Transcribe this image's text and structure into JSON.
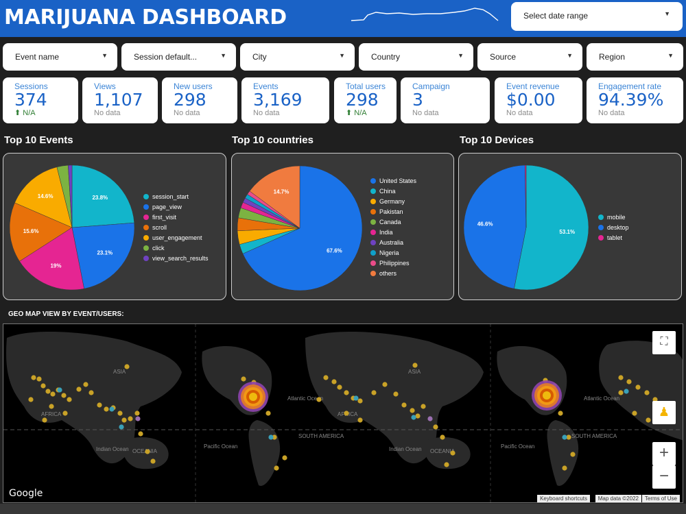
{
  "header": {
    "title": "MARIJUANA DASHBOARD",
    "date_range": "Select date range"
  },
  "filters": [
    "Event name",
    "Session default...",
    "City",
    "Country",
    "Source",
    "Region"
  ],
  "kpis": [
    {
      "label": "Sessions",
      "value": "374",
      "sub": "⬆ N/A",
      "up": true
    },
    {
      "label": "Views",
      "value": "1,107",
      "sub": "No data",
      "up": false
    },
    {
      "label": "New users",
      "value": "298",
      "sub": "No data",
      "up": false
    },
    {
      "label": "Events",
      "value": "3,169",
      "sub": "No data",
      "up": false
    },
    {
      "label": "Total users",
      "value": "298",
      "sub": "⬆ N/A",
      "up": true
    },
    {
      "label": "Campaign",
      "value": "3",
      "sub": "No data",
      "up": false
    },
    {
      "label": "Event revenue",
      "value": "$0.00",
      "sub": "No data",
      "up": false
    },
    {
      "label": "Engagement rate",
      "value": "94.39%",
      "sub": "No data",
      "up": false
    }
  ],
  "sections": {
    "events": "Top 10 Events",
    "countries": "Top 10 countries",
    "devices": "Top 10 Devices",
    "geo": "GEO MAP VIEW BY EVENT/USERS:"
  },
  "chart_data": [
    {
      "type": "pie",
      "title": "Top 10 Events",
      "categories": [
        "session_start",
        "page_view",
        "first_visit",
        "scroll",
        "user_engagement",
        "click",
        "view_search_results"
      ],
      "values": [
        23.8,
        23.1,
        19,
        15.6,
        14.6,
        2.9,
        1.0
      ],
      "data_labels": [
        "23.8%",
        "23.1%",
        "19%",
        "15.6%",
        "14.6%",
        "",
        ""
      ],
      "colors": [
        "#12b5cb",
        "#1a73e8",
        "#e52592",
        "#e8710a",
        "#f9ab00",
        "#7cb342",
        "#6f42c1"
      ],
      "legend": "right"
    },
    {
      "type": "pie",
      "title": "Top 10 countries",
      "categories": [
        "United States",
        "China",
        "Germany",
        "Pakistan",
        "Canada",
        "India",
        "Australia",
        "Nigeria",
        "Philippines",
        "others"
      ],
      "values": [
        67.6,
        2.5,
        3.5,
        3.3,
        2.6,
        1.5,
        1.2,
        1.1,
        1.0,
        14.7
      ],
      "data_labels": [
        "67.6%",
        "",
        "",
        "",
        "",
        "",
        "",
        "",
        "",
        "14.7%"
      ],
      "colors": [
        "#1a73e8",
        "#12b5cb",
        "#f9ab00",
        "#e8710a",
        "#7cb342",
        "#e52592",
        "#6f42c1",
        "#0fa0c9",
        "#ea4c89",
        "#f07b3f"
      ],
      "legend": "right"
    },
    {
      "type": "pie",
      "title": "Top 10 Devices",
      "categories": [
        "mobile",
        "desktop",
        "tablet"
      ],
      "values": [
        53.1,
        46.6,
        0.3
      ],
      "data_labels": [
        "53.1%",
        "46.6%",
        ""
      ],
      "colors": [
        "#12b5cb",
        "#1a73e8",
        "#e52592"
      ],
      "legend": "right"
    }
  ],
  "map": {
    "labels": [
      "ASIA",
      "AFRICA",
      "Indian Ocean",
      "OCEANIA",
      "Pacific Ocean",
      "Atlantic Ocean",
      "SOUTH AMERICA",
      "ASIA",
      "AFRICA",
      "Indian Ocean",
      "OCEANIA",
      "Pacific Ocean",
      "Atlantic Ocean",
      "SOUTH AMERICA"
    ],
    "google": "Google",
    "attrib": [
      "Keyboard shortcuts",
      "Map data ©2022",
      "Terms of Use"
    ],
    "zoom_in": "+",
    "zoom_out": "−"
  }
}
